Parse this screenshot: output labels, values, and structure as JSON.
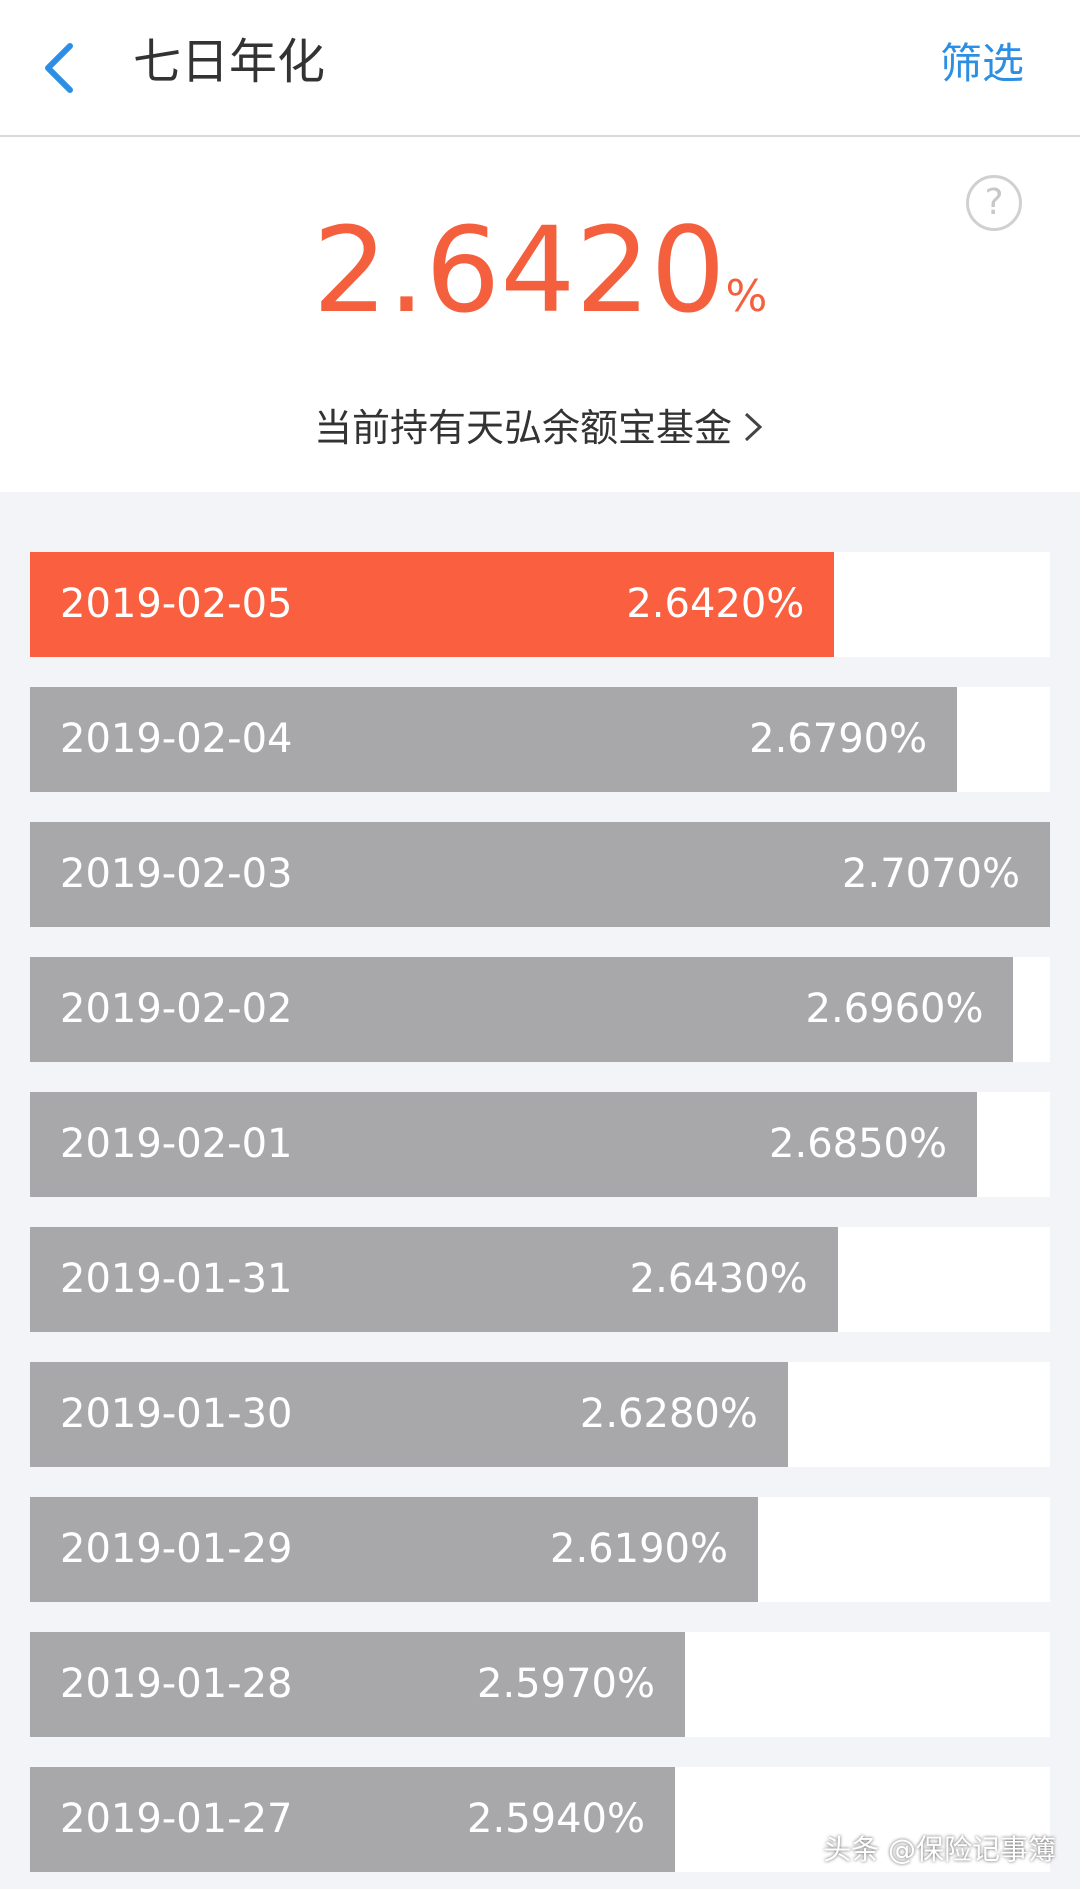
{
  "header": {
    "title": "七日年化",
    "filter": "筛选"
  },
  "current": {
    "rate": "2.6420",
    "unit": "%",
    "help": "?"
  },
  "fund_link": "当前持有天弘余额宝基金",
  "rows": [
    {
      "date": "2019-02-05",
      "value": 2.642,
      "label": "2.6420%"
    },
    {
      "date": "2019-02-04",
      "value": 2.679,
      "label": "2.6790%"
    },
    {
      "date": "2019-02-03",
      "value": 2.707,
      "label": "2.7070%"
    },
    {
      "date": "2019-02-02",
      "value": 2.696,
      "label": "2.6960%"
    },
    {
      "date": "2019-02-01",
      "value": 2.685,
      "label": "2.6850%"
    },
    {
      "date": "2019-01-31",
      "value": 2.643,
      "label": "2.6430%"
    },
    {
      "date": "2019-01-30",
      "value": 2.628,
      "label": "2.6280%"
    },
    {
      "date": "2019-01-29",
      "value": 2.619,
      "label": "2.6190%"
    },
    {
      "date": "2019-01-28",
      "value": 2.597,
      "label": "2.5970%"
    },
    {
      "date": "2019-01-27",
      "value": 2.594,
      "label": "2.5940%"
    }
  ],
  "bar_color": "#a8a8ab",
  "highlight_color": "#fa603f",
  "highlight_index": 0,
  "watermark": "头条 @保险记事簿"
}
